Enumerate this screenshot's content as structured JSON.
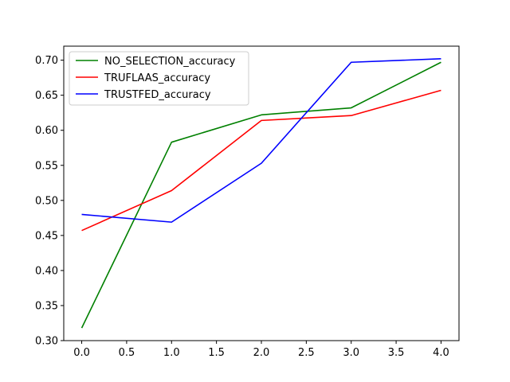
{
  "chart_data": {
    "type": "line",
    "x": [
      0,
      1,
      2,
      3,
      4
    ],
    "xlim": [
      -0.2,
      4.2
    ],
    "ylim": [
      0.3,
      0.72
    ],
    "xticks": [
      "0.0",
      "0.5",
      "1.0",
      "1.5",
      "2.0",
      "2.5",
      "3.0",
      "3.5",
      "4.0"
    ],
    "yticks": [
      "0.30",
      "0.35",
      "0.40",
      "0.45",
      "0.50",
      "0.55",
      "0.60",
      "0.65",
      "0.70"
    ],
    "grid": false,
    "legend_position": "top-left",
    "series": [
      {
        "name": "NO_SELECTION_accuracy",
        "color": "#008000",
        "values": [
          0.318,
          0.583,
          0.622,
          0.632,
          0.697
        ]
      },
      {
        "name": "TRUFLAAS_accuracy",
        "color": "#ff0000",
        "values": [
          0.457,
          0.514,
          0.614,
          0.621,
          0.657
        ]
      },
      {
        "name": "TRUSTFED_accuracy",
        "color": "#0000ff",
        "values": [
          0.48,
          0.469,
          0.553,
          0.697,
          0.702
        ]
      }
    ]
  }
}
